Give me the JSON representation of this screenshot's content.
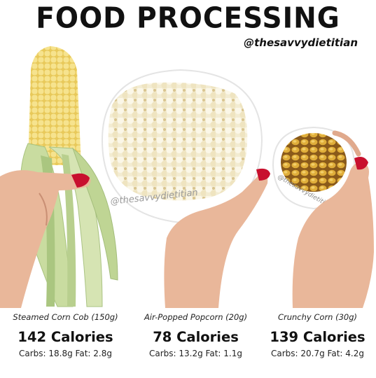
{
  "header": {
    "title": "FOOD PROCESSING",
    "handle": "@thesavvydietitian"
  },
  "photo": {
    "watermark": "@thesavvydietitian"
  },
  "items": [
    {
      "food": "Steamed Corn Cob (150g)",
      "calories": "142 Calories",
      "macros": "Carbs: 18.8g Fat: 2.8g"
    },
    {
      "food": "Air-Popped Popcorn (20g)",
      "calories": "78 Calories",
      "macros": "Carbs: 13.2g Fat: 1.1g"
    },
    {
      "food": "Crunchy Corn (30g)",
      "calories": "139 Calories",
      "macros": "Carbs: 20.7g Fat: 4.2g"
    }
  ],
  "colors": {
    "corn": "#f3dd7a",
    "husk": "#c9dca0",
    "skin": "#e9b79a",
    "nail": "#c8102e",
    "popcorn": "#f4eed6",
    "toasted_corn": "#d9a62f"
  }
}
